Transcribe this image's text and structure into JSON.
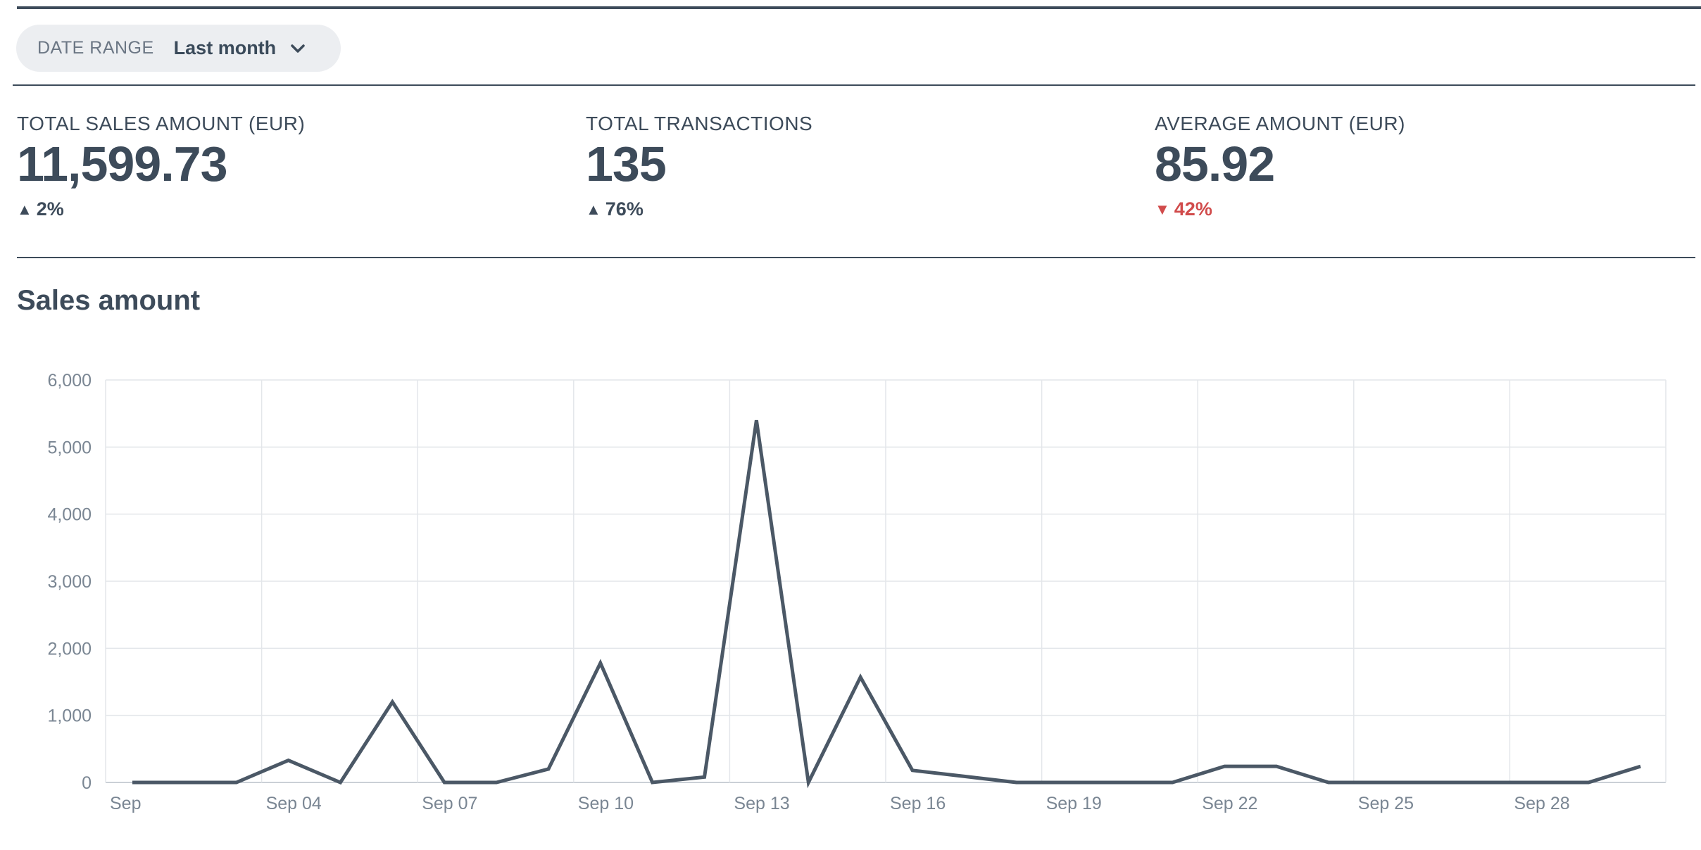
{
  "filter": {
    "label": "DATE RANGE",
    "value": "Last month"
  },
  "stats": [
    {
      "label": "TOTAL SALES AMOUNT (EUR)",
      "value": "11,599.73",
      "change": "2%",
      "direction": "up"
    },
    {
      "label": "TOTAL TRANSACTIONS",
      "value": "135",
      "change": "76%",
      "direction": "up"
    },
    {
      "label": "AVERAGE AMOUNT (EUR)",
      "value": "85.92",
      "change": "42%",
      "direction": "down"
    }
  ],
  "section": {
    "title": "Sales amount"
  },
  "colors": {
    "line": "#4b5866",
    "grid": "#e3e6ea",
    "down": "#d14b4b",
    "text": "#3d4b5a"
  },
  "chart_data": {
    "type": "line",
    "title": "Sales amount",
    "xlabel": "",
    "ylabel": "",
    "ylim": [
      0,
      6000
    ],
    "yticks": [
      "0",
      "1,000",
      "2,000",
      "3,000",
      "4,000",
      "5,000",
      "6,000"
    ],
    "xtick_labels": [
      "Sep",
      "Sep 04",
      "Sep 07",
      "Sep 10",
      "Sep 13",
      "Sep 16",
      "Sep 19",
      "Sep 22",
      "Sep 25",
      "Sep 28"
    ],
    "grid": true,
    "x": [
      "Sep 01",
      "Sep 02",
      "Sep 03",
      "Sep 04",
      "Sep 05",
      "Sep 06",
      "Sep 07",
      "Sep 08",
      "Sep 09",
      "Sep 10",
      "Sep 11",
      "Sep 12",
      "Sep 13",
      "Sep 14",
      "Sep 15",
      "Sep 16",
      "Sep 17",
      "Sep 18",
      "Sep 19",
      "Sep 20",
      "Sep 21",
      "Sep 22",
      "Sep 23",
      "Sep 24",
      "Sep 25",
      "Sep 26",
      "Sep 27",
      "Sep 28",
      "Sep 29",
      "Sep 30"
    ],
    "series": [
      {
        "values": [
          0,
          0,
          0,
          330,
          0,
          1200,
          0,
          0,
          200,
          1780,
          0,
          80,
          5400,
          0,
          1570,
          180,
          90,
          0,
          0,
          0,
          0,
          240,
          240,
          0,
          0,
          0,
          0,
          0,
          0,
          240
        ]
      }
    ]
  }
}
